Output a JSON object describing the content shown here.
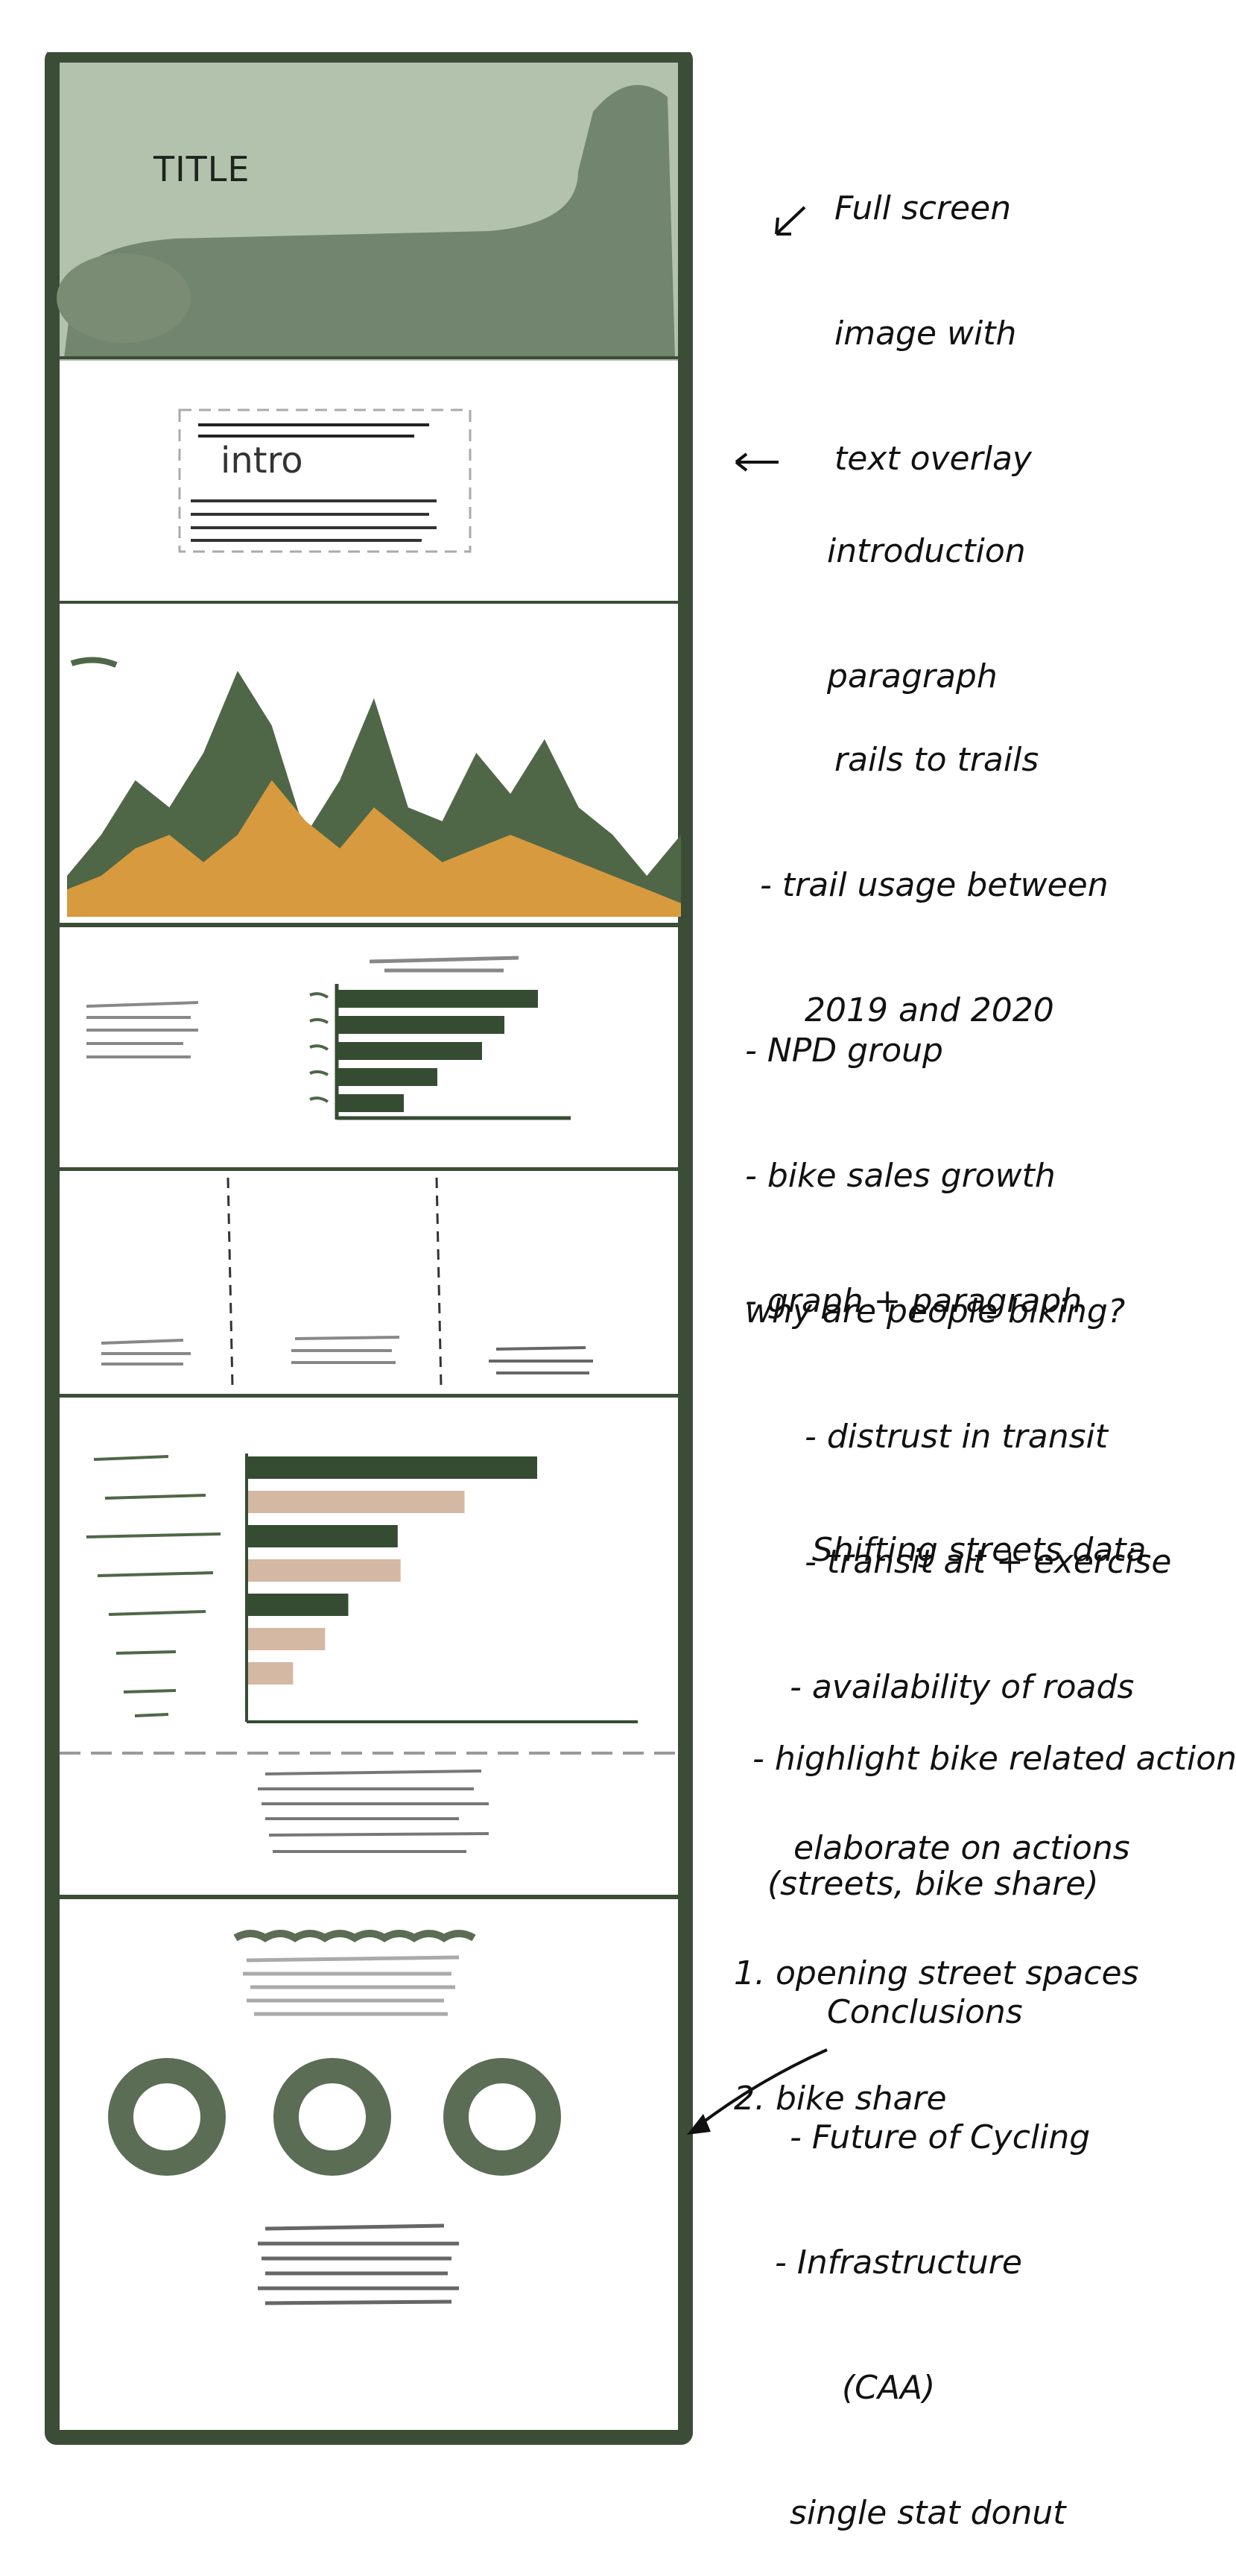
{
  "colors": {
    "frame": "#3b4d36",
    "hero": "#6f826a",
    "hero_light": "#b3c2ad",
    "mountain_dark": "#4f6747",
    "mountain_orange": "#d89a3e",
    "bar_dark": "#354c33",
    "bar_tan": "#d4b8a4",
    "scribble": "#666666",
    "donut": "#5b6d55"
  },
  "wireframe": {
    "title_label": "TITLE",
    "intro_label": "intro"
  },
  "annotations": {
    "hero": [
      "Full screen",
      "image with",
      "text overlay"
    ],
    "intro": [
      "introduction",
      "paragraph"
    ],
    "rails": [
      "rails to trails",
      "- trail usage between",
      "2019 and 2020"
    ],
    "npd": [
      "- NPD group",
      "- bike sales growth",
      "- graph + paragraph"
    ],
    "why_title": "why are people biking?",
    "why_items": [
      "- distrust in transit",
      "- transit alt + exercise",
      "- availability of roads"
    ],
    "shifting": [
      "Shifting streets data",
      "",
      "- highlight bike related actions",
      "(streets, bike share)"
    ],
    "elaborate": [
      "elaborate on actions",
      "1. opening street spaces",
      "2. bike share"
    ],
    "conclusions": [
      "Conclusions",
      "- Future of Cycling",
      "- Infrastructure",
      "(CAA)",
      "single stat donut"
    ]
  },
  "chart_data": [
    {
      "type": "area",
      "series": [
        {
          "color": "#4f6747",
          "values": [
            3,
            6,
            10,
            8,
            12,
            18,
            14,
            6,
            10,
            16,
            8,
            7,
            12,
            9,
            13,
            8,
            6,
            3,
            6
          ]
        },
        {
          "color": "#d89a3e",
          "values": [
            2,
            3,
            5,
            6,
            4,
            6,
            10,
            7,
            5,
            8,
            6,
            4,
            5,
            6,
            5,
            4,
            3,
            2,
            1
          ]
        }
      ]
    },
    {
      "type": "bar",
      "orientation": "horizontal",
      "values": [
        9,
        7.5,
        6.5,
        4.5,
        3
      ]
    },
    {
      "type": "bar",
      "orientation": "horizontal",
      "series": [
        {
          "color": "#354c33",
          "values": [
            10,
            5.2,
            3.5
          ]
        },
        {
          "color": "#d4b8a4",
          "values": [
            7.5,
            5.3,
            2.7,
            1.6
          ]
        }
      ]
    }
  ]
}
